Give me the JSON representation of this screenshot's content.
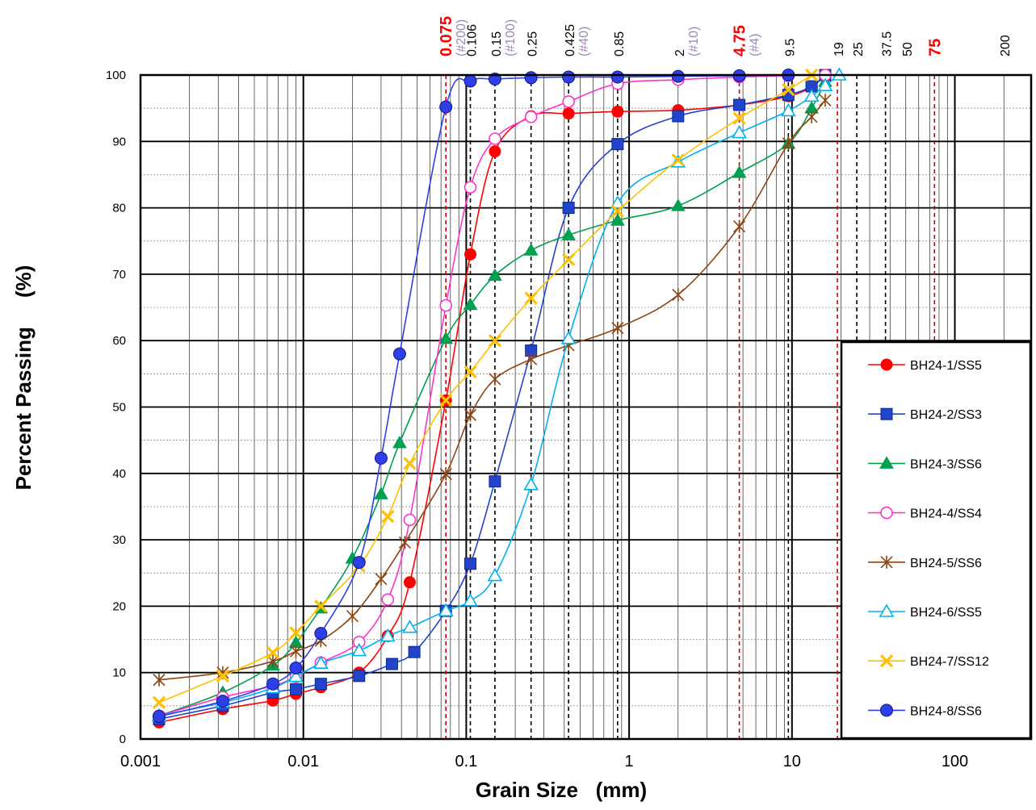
{
  "chart_data": {
    "type": "scatter",
    "xlabel": "Grain Size   (mm)",
    "ylabel": "Percent Passing     (%)",
    "xscale": "log",
    "xlim": [
      0.001,
      300
    ],
    "ylim": [
      0,
      100
    ],
    "x_ticks": [
      "0.001",
      "0.01",
      "0.1",
      "1",
      "10",
      "100"
    ],
    "y_ticks": [
      "0",
      "10",
      "20",
      "30",
      "40",
      "50",
      "60",
      "70",
      "80",
      "90",
      "100"
    ],
    "sieve_labels": [
      {
        "size": 0.075,
        "label": "0.075",
        "sieve_no": "(#200)",
        "highlight": true
      },
      {
        "size": 0.106,
        "label": "0.106",
        "sieve_no": "",
        "highlight": false
      },
      {
        "size": 0.15,
        "label": "0.15",
        "sieve_no": "(#100)",
        "highlight": false
      },
      {
        "size": 0.25,
        "label": "0.25",
        "sieve_no": "",
        "highlight": false
      },
      {
        "size": 0.425,
        "label": "0.425",
        "sieve_no": "(#40)",
        "highlight": false
      },
      {
        "size": 0.85,
        "label": "0.85",
        "sieve_no": "",
        "highlight": false
      },
      {
        "size": 2,
        "label": "2",
        "sieve_no": "(#10)",
        "highlight": false
      },
      {
        "size": 4.75,
        "label": "4.75",
        "sieve_no": "(#4)",
        "highlight": true
      },
      {
        "size": 9.5,
        "label": "9.5",
        "sieve_no": "",
        "highlight": false
      },
      {
        "size": 19,
        "label": "19",
        "sieve_no": "",
        "highlight": false
      },
      {
        "size": 25,
        "label": "25",
        "sieve_no": "",
        "highlight": false
      },
      {
        "size": 37.5,
        "label": "37.5",
        "sieve_no": "",
        "highlight": false
      },
      {
        "size": 50,
        "label": "50",
        "sieve_no": "",
        "highlight": false
      },
      {
        "size": 75,
        "label": "75",
        "sieve_no": "",
        "highlight": true
      },
      {
        "size": 200,
        "label": "200",
        "sieve_no": "",
        "highlight": false
      }
    ],
    "sieve_lines": [
      {
        "size": 0.075,
        "color": "#cc0000"
      },
      {
        "size": 0.106,
        "color": "#000000"
      },
      {
        "size": 0.15,
        "color": "#000000"
      },
      {
        "size": 0.25,
        "color": "#000000"
      },
      {
        "size": 0.425,
        "color": "#000000"
      },
      {
        "size": 0.85,
        "color": "#000000"
      },
      {
        "size": 4.75,
        "color": "#cc0000"
      },
      {
        "size": 9.5,
        "color": "#000000"
      },
      {
        "size": 19,
        "color": "#cc0000"
      },
      {
        "size": 25,
        "color": "#000000"
      },
      {
        "size": 37.5,
        "color": "#000000"
      },
      {
        "size": 75,
        "color": "#cc0000"
      }
    ],
    "legend_position": "right",
    "series": [
      {
        "name": "BH24-1/SS5",
        "color": "#ff0000",
        "marker": "circle-filled",
        "points": [
          [
            0.0013,
            2.5
          ],
          [
            0.0032,
            4.5
          ],
          [
            0.0065,
            5.8
          ],
          [
            0.009,
            6.8
          ],
          [
            0.0128,
            7.8
          ],
          [
            0.022,
            10
          ],
          [
            0.033,
            15.5
          ],
          [
            0.045,
            23.6
          ],
          [
            0.075,
            51
          ],
          [
            0.106,
            73
          ],
          [
            0.15,
            88.5
          ],
          [
            0.25,
            93.8
          ],
          [
            0.425,
            94.2
          ],
          [
            0.85,
            94.5
          ],
          [
            2,
            94.7
          ],
          [
            4.75,
            95.5
          ],
          [
            9.5,
            96.8
          ],
          [
            13.2,
            98.2
          ],
          [
            16,
            100
          ]
        ]
      },
      {
        "name": "BH24-2/SS3",
        "color": "#2244cc",
        "marker": "square-filled",
        "points": [
          [
            0.0013,
            3
          ],
          [
            0.0032,
            5
          ],
          [
            0.0065,
            7
          ],
          [
            0.009,
            7.5
          ],
          [
            0.0128,
            8.3
          ],
          [
            0.022,
            9.5
          ],
          [
            0.035,
            11.3
          ],
          [
            0.048,
            13.1
          ],
          [
            0.075,
            19.3
          ],
          [
            0.106,
            26.4
          ],
          [
            0.15,
            38.8
          ],
          [
            0.25,
            58.5
          ],
          [
            0.425,
            80
          ],
          [
            0.85,
            89.6
          ],
          [
            2,
            93.8
          ],
          [
            4.75,
            95.5
          ],
          [
            9.5,
            97
          ],
          [
            13.2,
            98.3
          ],
          [
            16,
            100
          ]
        ]
      },
      {
        "name": "BH24-3/SS6",
        "color": "#00a050",
        "marker": "triangle-filled",
        "points": [
          [
            0.0013,
            3.5
          ],
          [
            0.0032,
            7
          ],
          [
            0.0065,
            11.1
          ],
          [
            0.009,
            14.5
          ],
          [
            0.0128,
            19.7
          ],
          [
            0.02,
            27.2
          ],
          [
            0.03,
            36.9
          ],
          [
            0.039,
            44.6
          ],
          [
            0.075,
            60.3
          ],
          [
            0.106,
            65.4
          ],
          [
            0.15,
            69.8
          ],
          [
            0.25,
            73.6
          ],
          [
            0.425,
            75.9
          ],
          [
            0.85,
            78.1
          ],
          [
            2,
            80.3
          ],
          [
            4.75,
            85.3
          ],
          [
            9.5,
            89.7
          ],
          [
            13.2,
            95
          ],
          [
            16,
            99
          ]
        ]
      },
      {
        "name": "BH24-4/SS4",
        "color": "#ff33cc",
        "marker": "circle-open",
        "points": [
          [
            0.0013,
            3.5
          ],
          [
            0.0032,
            6.3
          ],
          [
            0.0065,
            8
          ],
          [
            0.009,
            9.4
          ],
          [
            0.0128,
            11.5
          ],
          [
            0.022,
            14.6
          ],
          [
            0.033,
            21
          ],
          [
            0.045,
            33
          ],
          [
            0.075,
            65.3
          ],
          [
            0.106,
            83.1
          ],
          [
            0.15,
            90.4
          ],
          [
            0.25,
            93.7
          ],
          [
            0.425,
            96
          ],
          [
            0.85,
            98.7
          ],
          [
            2,
            99.3
          ],
          [
            4.75,
            99.7
          ],
          [
            9.5,
            99.9
          ],
          [
            16,
            100
          ]
        ]
      },
      {
        "name": "BH24-5/SS6",
        "color": "#8b4513",
        "marker": "star",
        "points": [
          [
            0.0013,
            8.9
          ],
          [
            0.0032,
            10
          ],
          [
            0.0065,
            11.7
          ],
          [
            0.009,
            13.2
          ],
          [
            0.0128,
            14.8
          ],
          [
            0.02,
            18.5
          ],
          [
            0.03,
            24.1
          ],
          [
            0.042,
            29.6
          ],
          [
            0.075,
            39.9
          ],
          [
            0.106,
            48.8
          ],
          [
            0.15,
            54.2
          ],
          [
            0.25,
            57.2
          ],
          [
            0.425,
            59.3
          ],
          [
            0.85,
            61.9
          ],
          [
            2,
            66.9
          ],
          [
            4.75,
            77.2
          ],
          [
            9.5,
            89.7
          ],
          [
            13.2,
            93.7
          ],
          [
            16,
            96.2
          ]
        ]
      },
      {
        "name": "BH24-6/SS5",
        "color": "#00b0f0",
        "marker": "triangle-open",
        "points": [
          [
            0.0013,
            3.5
          ],
          [
            0.0032,
            5.5
          ],
          [
            0.0065,
            7.7
          ],
          [
            0.009,
            9.4
          ],
          [
            0.0128,
            11.4
          ],
          [
            0.022,
            13.3
          ],
          [
            0.033,
            15.5
          ],
          [
            0.045,
            16.8
          ],
          [
            0.075,
            19.3
          ],
          [
            0.106,
            20.8
          ],
          [
            0.15,
            24.6
          ],
          [
            0.25,
            38.3
          ],
          [
            0.425,
            60.3
          ],
          [
            0.85,
            80.7
          ],
          [
            2,
            86.9
          ],
          [
            4.75,
            91.3
          ],
          [
            9.5,
            94.6
          ],
          [
            13.2,
            96.8
          ],
          [
            16,
            98.4
          ],
          [
            19.5,
            100
          ]
        ]
      },
      {
        "name": "BH24-7/SS12",
        "color": "#ffc000",
        "marker": "x",
        "points": [
          [
            0.0013,
            5.5
          ],
          [
            0.0032,
            9.5
          ],
          [
            0.0065,
            13
          ],
          [
            0.009,
            16
          ],
          [
            0.0128,
            20
          ],
          [
            0.022,
            26
          ],
          [
            0.033,
            33.5
          ],
          [
            0.045,
            41.5
          ],
          [
            0.075,
            51
          ],
          [
            0.106,
            55.3
          ],
          [
            0.15,
            60
          ],
          [
            0.25,
            66.4
          ],
          [
            0.425,
            72.2
          ],
          [
            0.85,
            79.5
          ],
          [
            2,
            87.2
          ],
          [
            4.75,
            93.5
          ],
          [
            9.5,
            97.8
          ],
          [
            13.2,
            100
          ]
        ]
      },
      {
        "name": "BH24-8/SS6",
        "color": "#2f3fe6",
        "marker": "circle-filled-large",
        "points": [
          [
            0.0013,
            3.4
          ],
          [
            0.0032,
            5.7
          ],
          [
            0.0065,
            8.3
          ],
          [
            0.009,
            10.7
          ],
          [
            0.0128,
            15.9
          ],
          [
            0.022,
            26.6
          ],
          [
            0.03,
            42.3
          ],
          [
            0.039,
            58
          ],
          [
            0.075,
            95.2
          ],
          [
            0.106,
            99.1
          ],
          [
            0.15,
            99.4
          ],
          [
            0.25,
            99.6
          ],
          [
            0.425,
            99.7
          ],
          [
            0.85,
            99.7
          ],
          [
            2,
            99.8
          ],
          [
            4.75,
            99.9
          ],
          [
            9.5,
            100
          ]
        ]
      }
    ]
  }
}
